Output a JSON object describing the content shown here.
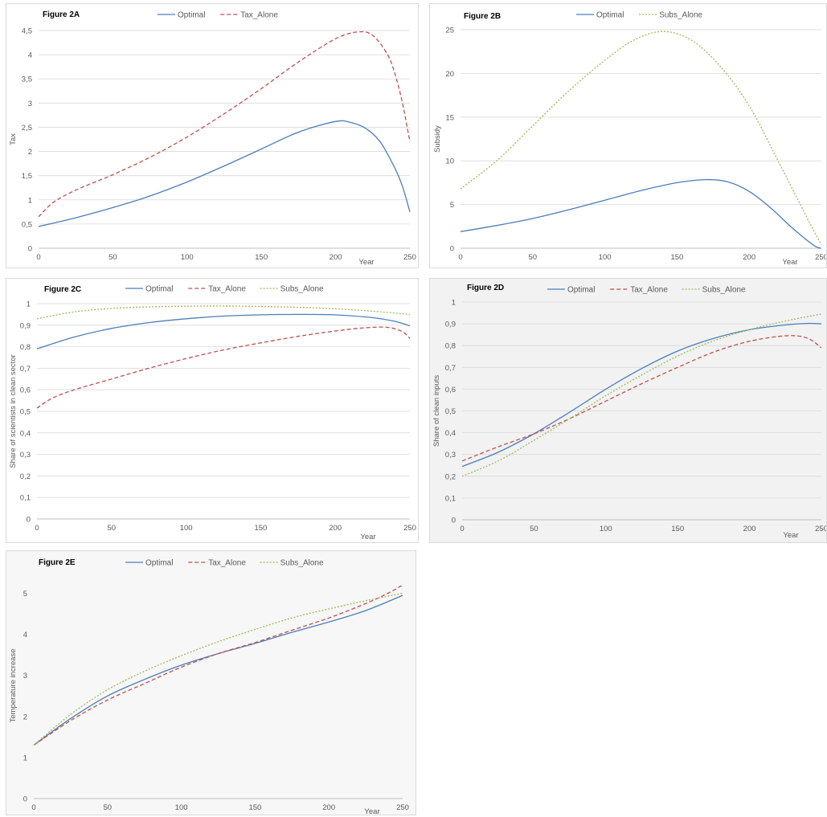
{
  "colors": {
    "optimal": "#4a7ebb",
    "tax": "#c0504d",
    "subs": "#9bbb59",
    "grid": "#d9d9d9"
  },
  "chart_data": [
    {
      "type": "line",
      "title": "Figure 2A",
      "xlabel": "Year",
      "ylabel": "Tax",
      "xlim": [
        0,
        250
      ],
      "ylim": [
        0,
        4.5
      ],
      "xticks": [
        "0",
        "50",
        "100",
        "150",
        "200",
        "250"
      ],
      "yticks": [
        "0",
        "0,5",
        "1",
        "1,5",
        "2",
        "2,5",
        "3",
        "3,5",
        "4",
        "4,5"
      ],
      "grid": true,
      "legend_position": "top",
      "legend": [
        "Optimal",
        "Tax_Alone"
      ],
      "series": [
        {
          "name": "Optimal",
          "x": [
            0,
            25,
            50,
            75,
            100,
            125,
            150,
            175,
            200,
            210,
            220,
            230,
            240,
            245,
            250
          ],
          "y": [
            0.45,
            0.63,
            0.84,
            1.08,
            1.37,
            1.7,
            2.05,
            2.4,
            2.62,
            2.6,
            2.48,
            2.2,
            1.65,
            1.28,
            0.75
          ]
        },
        {
          "name": "Tax_Alone",
          "x": [
            0,
            10,
            25,
            50,
            75,
            100,
            125,
            150,
            175,
            200,
            215,
            225,
            235,
            240,
            245,
            250
          ],
          "y": [
            0.65,
            0.95,
            1.2,
            1.52,
            1.88,
            2.3,
            2.78,
            3.3,
            3.85,
            4.33,
            4.47,
            4.4,
            4.0,
            3.6,
            3.0,
            2.2
          ]
        }
      ]
    },
    {
      "type": "line",
      "title": "Figure 2B",
      "xlabel": "Year",
      "ylabel": "Subsidy",
      "xlim": [
        0,
        250
      ],
      "ylim": [
        0,
        25
      ],
      "xticks": [
        "0",
        "50",
        "100",
        "150",
        "200",
        "250"
      ],
      "yticks": [
        "0",
        "5",
        "10",
        "15",
        "20",
        "25"
      ],
      "grid": true,
      "legend_position": "top",
      "legend": [
        "Optimal",
        "Subs_Alone"
      ],
      "series": [
        {
          "name": "Optimal",
          "x": [
            0,
            25,
            50,
            75,
            100,
            125,
            150,
            170,
            185,
            200,
            215,
            230,
            245,
            250
          ],
          "y": [
            1.9,
            2.6,
            3.4,
            4.4,
            5.5,
            6.6,
            7.5,
            7.85,
            7.6,
            6.5,
            4.6,
            2.3,
            0.3,
            0.0
          ]
        },
        {
          "name": "Subs_Alone",
          "x": [
            0,
            25,
            50,
            75,
            100,
            120,
            140,
            160,
            180,
            200,
            220,
            240,
            250
          ],
          "y": [
            6.8,
            10.0,
            14.0,
            18.0,
            21.5,
            23.8,
            24.8,
            23.8,
            20.8,
            16.3,
            10.0,
            3.5,
            0.4
          ]
        }
      ]
    },
    {
      "type": "line",
      "title": "Figure 2C",
      "xlabel": "Year",
      "ylabel": "Share of scientists in clean sector",
      "xlim": [
        0,
        250
      ],
      "ylim": [
        0,
        1
      ],
      "xticks": [
        "0",
        "50",
        "100",
        "150",
        "200",
        "250"
      ],
      "yticks": [
        "0",
        "0,1",
        "0,2",
        "0,3",
        "0,4",
        "0,5",
        "0,6",
        "0,7",
        "0,8",
        "0,9",
        "1"
      ],
      "grid": true,
      "legend_position": "top",
      "legend": [
        "Optimal",
        "Tax_Alone",
        "Subs_Alone"
      ],
      "series": [
        {
          "name": "Optimal",
          "x": [
            0,
            25,
            50,
            75,
            100,
            125,
            150,
            175,
            200,
            225,
            240,
            250
          ],
          "y": [
            0.79,
            0.845,
            0.885,
            0.912,
            0.93,
            0.942,
            0.948,
            0.95,
            0.948,
            0.935,
            0.918,
            0.897
          ]
        },
        {
          "name": "Tax_Alone",
          "x": [
            0,
            10,
            25,
            50,
            75,
            100,
            125,
            150,
            175,
            200,
            220,
            235,
            245,
            250
          ],
          "y": [
            0.515,
            0.56,
            0.6,
            0.65,
            0.7,
            0.745,
            0.785,
            0.818,
            0.848,
            0.873,
            0.888,
            0.89,
            0.87,
            0.838
          ]
        },
        {
          "name": "Subs_Alone",
          "x": [
            0,
            25,
            50,
            75,
            100,
            125,
            150,
            175,
            200,
            225,
            250
          ],
          "y": [
            0.93,
            0.962,
            0.978,
            0.985,
            0.988,
            0.989,
            0.987,
            0.983,
            0.976,
            0.965,
            0.95
          ]
        }
      ]
    },
    {
      "type": "line",
      "title": "Figure 2D",
      "xlabel": "Year",
      "ylabel": "Share of clean inputs",
      "xlim": [
        0,
        250
      ],
      "ylim": [
        0,
        1
      ],
      "xticks": [
        "0",
        "50",
        "100",
        "150",
        "200",
        "250"
      ],
      "yticks": [
        "0",
        "0,1",
        "0,2",
        "0,3",
        "0,4",
        "0,5",
        "0,6",
        "0,7",
        "0,8",
        "0,9",
        "1"
      ],
      "grid": true,
      "legend_position": "top",
      "legend": [
        "Optimal",
        "Tax_Alone",
        "Subs_Alone"
      ],
      "series": [
        {
          "name": "Optimal",
          "x": [
            0,
            25,
            50,
            75,
            100,
            125,
            150,
            175,
            200,
            225,
            240,
            250
          ],
          "y": [
            0.245,
            0.31,
            0.395,
            0.495,
            0.6,
            0.695,
            0.775,
            0.833,
            0.873,
            0.895,
            0.902,
            0.9
          ]
        },
        {
          "name": "Tax_Alone",
          "x": [
            0,
            25,
            50,
            75,
            100,
            125,
            150,
            175,
            200,
            225,
            240,
            250
          ],
          "y": [
            0.27,
            0.335,
            0.395,
            0.465,
            0.545,
            0.625,
            0.7,
            0.77,
            0.82,
            0.845,
            0.835,
            0.79
          ]
        },
        {
          "name": "Subs_Alone",
          "x": [
            0,
            25,
            50,
            75,
            100,
            125,
            150,
            175,
            200,
            225,
            250
          ],
          "y": [
            0.2,
            0.27,
            0.365,
            0.465,
            0.57,
            0.665,
            0.752,
            0.822,
            0.873,
            0.913,
            0.945
          ]
        }
      ]
    },
    {
      "type": "line",
      "title": "Figure 2E",
      "xlabel": "Year",
      "ylabel": "Temperature increase",
      "xlim": [
        0,
        250
      ],
      "ylim": [
        0,
        5.5
      ],
      "xticks": [
        "0",
        "50",
        "100",
        "150",
        "200",
        "250"
      ],
      "yticks": [
        "0",
        "1",
        "2",
        "3",
        "4",
        "5"
      ],
      "grid": false,
      "legend_position": "top",
      "legend": [
        "Optimal",
        "Tax_Alone",
        "Subs_Alone"
      ],
      "series": [
        {
          "name": "Optimal",
          "x": [
            0,
            25,
            50,
            75,
            100,
            125,
            150,
            175,
            200,
            225,
            250
          ],
          "y": [
            1.3,
            1.95,
            2.5,
            2.9,
            3.25,
            3.53,
            3.78,
            4.05,
            4.3,
            4.58,
            4.95
          ]
        },
        {
          "name": "Tax_Alone",
          "x": [
            0,
            25,
            50,
            75,
            100,
            125,
            150,
            175,
            200,
            225,
            240,
            250
          ],
          "y": [
            1.3,
            1.9,
            2.4,
            2.8,
            3.2,
            3.53,
            3.8,
            4.1,
            4.4,
            4.75,
            5.0,
            5.2
          ]
        },
        {
          "name": "Subs_Alone",
          "x": [
            0,
            25,
            50,
            75,
            100,
            125,
            150,
            175,
            200,
            225,
            250
          ],
          "y": [
            1.3,
            2.05,
            2.65,
            3.1,
            3.48,
            3.82,
            4.12,
            4.4,
            4.62,
            4.82,
            5.0
          ]
        }
      ]
    }
  ]
}
